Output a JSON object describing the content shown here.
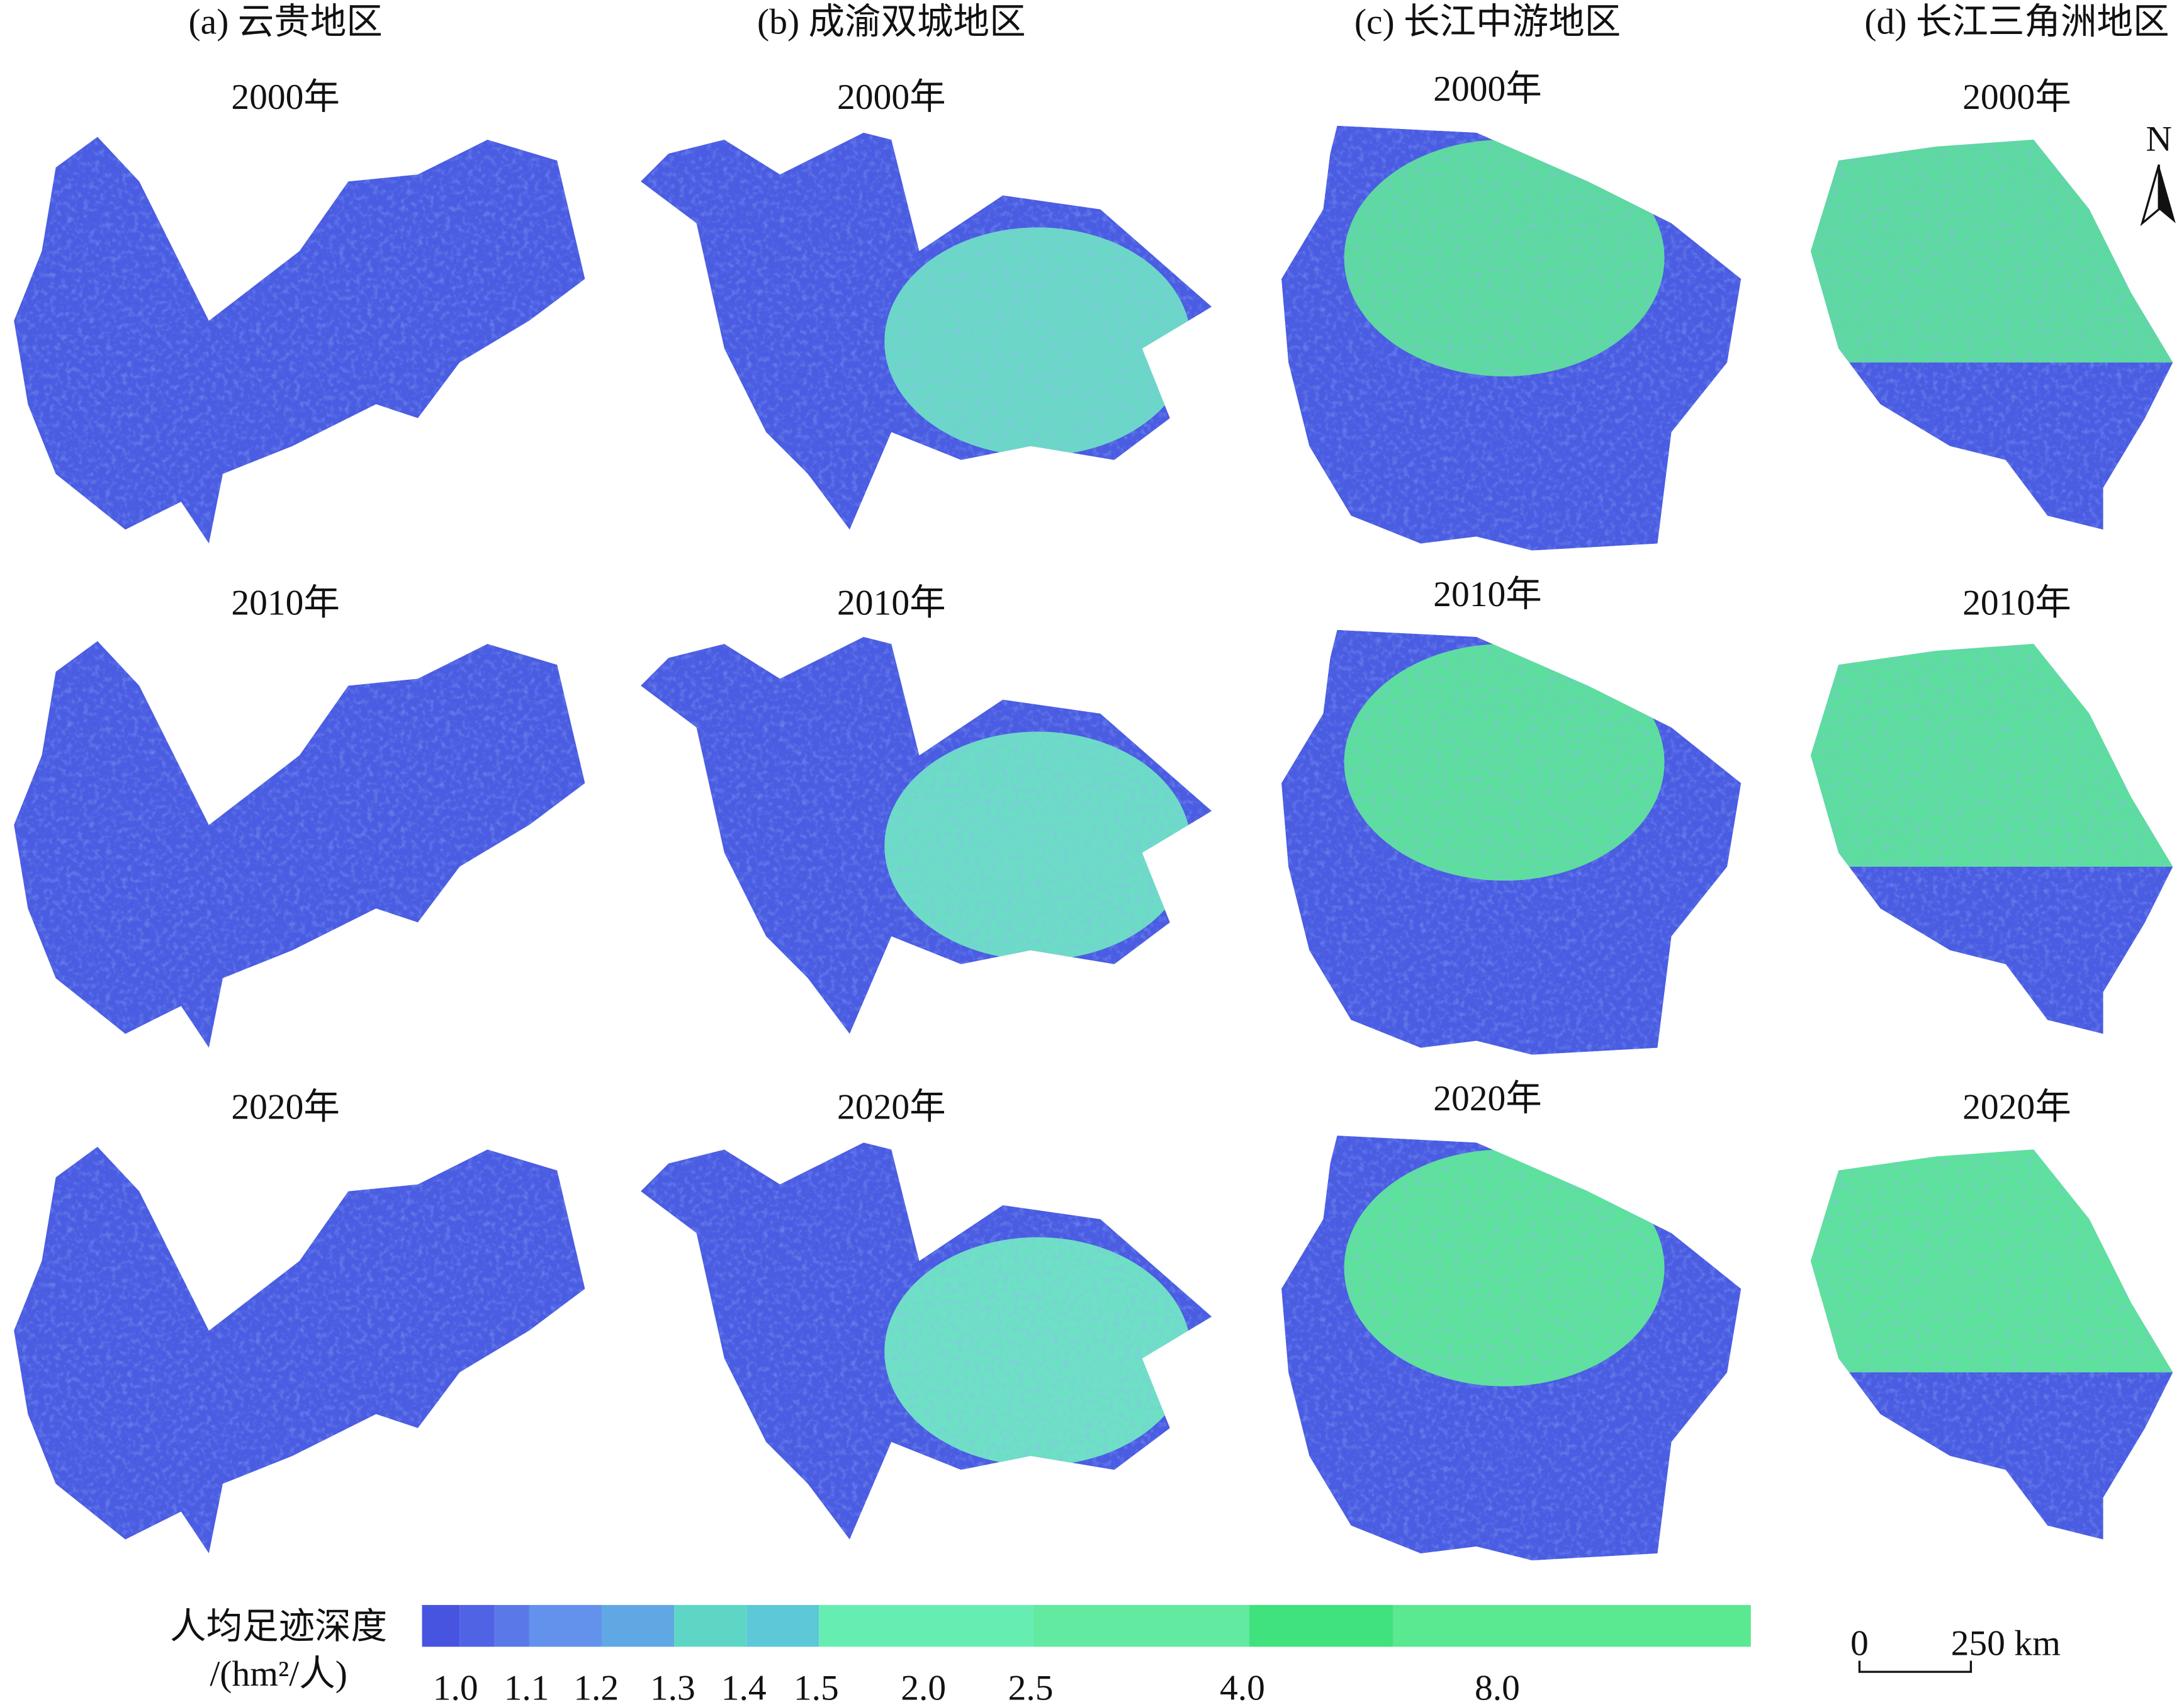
{
  "columns": [
    {
      "title": "(a) 云贵地区",
      "years": [
        "2000年",
        "2010年",
        "2020年"
      ]
    },
    {
      "title": "(b) 成渝双城地区",
      "years": [
        "2000年",
        "2010年",
        "2020年"
      ]
    },
    {
      "title": "(c) 长江中游地区",
      "years": [
        "2000年",
        "2010年",
        "2020年"
      ]
    },
    {
      "title": "(d) 长江三角洲地区",
      "years": [
        "2000年",
        "2010年",
        "2020年"
      ]
    }
  ],
  "legend": {
    "title": "人均足迹深度",
    "unit": "/(hm²/人)",
    "labels": [
      "1.0",
      "1.1",
      "1.2",
      "1.3",
      "1.4",
      "1.5",
      "2.0",
      "2.5",
      "4.0",
      "8.0"
    ],
    "colors": [
      "#4654e0",
      "#4f63e4",
      "#5a78e8",
      "#6392ec",
      "#5fa8e4",
      "#5ed6c6",
      "#5cc8d8",
      "#66eeb2",
      "#62eaa0",
      "#3fe27c",
      "#5ae890"
    ]
  },
  "scale_bar": {
    "start": "0",
    "end": "250 km"
  },
  "north": "N"
}
